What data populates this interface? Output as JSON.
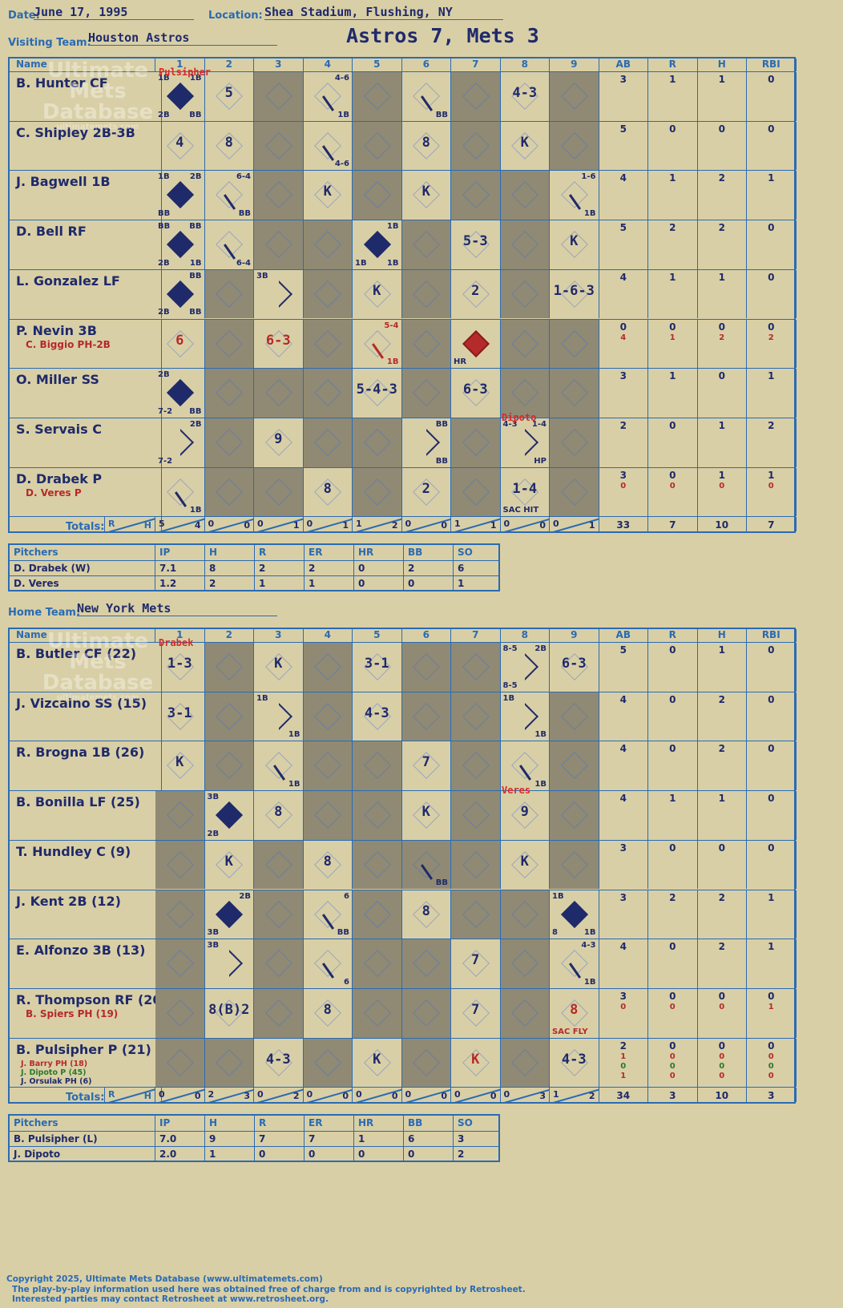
{
  "header": {
    "date_label": "Date:",
    "date": "June 17, 1995",
    "location_label": "Location:",
    "location": "Shea Stadium, Flushing, NY",
    "visiting_label": "Visiting Team:",
    "visiting_team": "Houston Astros",
    "home_label": "Home Team:",
    "home_team": "New York Mets",
    "title": "Astros 7, Mets 3"
  },
  "columns": {
    "name": "Name",
    "innings": [
      "1",
      "2",
      "3",
      "4",
      "5",
      "6",
      "7",
      "8",
      "9"
    ],
    "stats": [
      "AB",
      "R",
      "H",
      "RBI"
    ]
  },
  "watermark": {
    "line1": "Ultimate",
    "line2": "Mets",
    "line3": "Database",
    "url": "ultimatemets.com"
  },
  "visitors": {
    "players": [
      {
        "name": "B. Hunter CF",
        "subs": [],
        "stats": [
          [
            "3"
          ],
          [
            "1"
          ],
          [
            "1"
          ],
          [
            "0"
          ]
        ]
      },
      {
        "name": "C. Shipley 2B-3B",
        "subs": [],
        "stats": [
          [
            "5"
          ],
          [
            "0"
          ],
          [
            "0"
          ],
          [
            "0"
          ]
        ]
      },
      {
        "name": "J. Bagwell 1B",
        "subs": [],
        "stats": [
          [
            "4"
          ],
          [
            "1"
          ],
          [
            "2"
          ],
          [
            "1"
          ]
        ]
      },
      {
        "name": "D. Bell RF",
        "subs": [],
        "stats": [
          [
            "5"
          ],
          [
            "2"
          ],
          [
            "2"
          ],
          [
            "0"
          ]
        ]
      },
      {
        "name": "L. Gonzalez LF",
        "subs": [],
        "stats": [
          [
            "4"
          ],
          [
            "1"
          ],
          [
            "1"
          ],
          [
            "0"
          ]
        ]
      },
      {
        "name": "P. Nevin 3B",
        "subs": [
          "C. Biggio PH-2B"
        ],
        "stats": [
          [
            "0",
            "4"
          ],
          [
            "0",
            "1"
          ],
          [
            "0",
            "2"
          ],
          [
            "0",
            "2"
          ]
        ]
      },
      {
        "name": "O. Miller SS",
        "subs": [],
        "stats": [
          [
            "3"
          ],
          [
            "1"
          ],
          [
            "0"
          ],
          [
            "1"
          ]
        ]
      },
      {
        "name": "S. Servais C",
        "subs": [],
        "stats": [
          [
            "2"
          ],
          [
            "0"
          ],
          [
            "1"
          ],
          [
            "2"
          ]
        ]
      },
      {
        "name": "D. Drabek P",
        "subs": [
          "D. Veres P"
        ],
        "stats": [
          [
            "3",
            "0"
          ],
          [
            "0",
            "0"
          ],
          [
            "1",
            "0"
          ],
          [
            "1",
            "0"
          ]
        ]
      }
    ],
    "totals_label": "Totals:",
    "rh_r": "R",
    "rh_h": "H",
    "inning_totals": [
      [
        "5",
        "4"
      ],
      [
        "0",
        "0"
      ],
      [
        "0",
        "1"
      ],
      [
        "0",
        "1"
      ],
      [
        "1",
        "2"
      ],
      [
        "0",
        "0"
      ],
      [
        "1",
        "1"
      ],
      [
        "0",
        "0"
      ],
      [
        "0",
        "1"
      ]
    ],
    "stat_totals": [
      "33",
      "7",
      "10",
      "7"
    ]
  },
  "visitor_pitching": {
    "headers": [
      "Pitchers",
      "IP",
      "H",
      "R",
      "ER",
      "HR",
      "BB",
      "SO"
    ],
    "rows": [
      [
        "D. Drabek (W)",
        "7.1",
        "8",
        "2",
        "2",
        "0",
        "2",
        "6"
      ],
      [
        "D. Veres",
        "1.2",
        "2",
        "1",
        "1",
        "0",
        "0",
        "1"
      ]
    ]
  },
  "home": {
    "players": [
      {
        "name": "B. Butler CF (22)",
        "subs": [],
        "stats": [
          [
            "5"
          ],
          [
            "0"
          ],
          [
            "1"
          ],
          [
            "0"
          ]
        ]
      },
      {
        "name": "J. Vizcaino SS (15)",
        "subs": [],
        "stats": [
          [
            "4"
          ],
          [
            "0"
          ],
          [
            "2"
          ],
          [
            "0"
          ]
        ]
      },
      {
        "name": "R. Brogna 1B (26)",
        "subs": [],
        "stats": [
          [
            "4"
          ],
          [
            "0"
          ],
          [
            "2"
          ],
          [
            "0"
          ]
        ]
      },
      {
        "name": "B. Bonilla LF (25)",
        "subs": [],
        "stats": [
          [
            "4"
          ],
          [
            "1"
          ],
          [
            "1"
          ],
          [
            "0"
          ]
        ]
      },
      {
        "name": "T. Hundley C (9)",
        "subs": [],
        "stats": [
          [
            "3"
          ],
          [
            "0"
          ],
          [
            "0"
          ],
          [
            "0"
          ]
        ]
      },
      {
        "name": "J. Kent 2B (12)",
        "subs": [],
        "stats": [
          [
            "3"
          ],
          [
            "2"
          ],
          [
            "2"
          ],
          [
            "1"
          ]
        ]
      },
      {
        "name": "E. Alfonzo 3B (13)",
        "subs": [],
        "stats": [
          [
            "4"
          ],
          [
            "0"
          ],
          [
            "2"
          ],
          [
            "1"
          ]
        ]
      },
      {
        "name": "R. Thompson RF (20)",
        "subs": [
          "B. Spiers PH (19)"
        ],
        "stats": [
          [
            "3",
            "0"
          ],
          [
            "0",
            "0"
          ],
          [
            "0",
            "0"
          ],
          [
            "0",
            "1"
          ]
        ]
      },
      {
        "name": "B. Pulsipher P (21)",
        "subs": [
          "J. Barry PH (18)",
          "J. Dipoto P (45)",
          "J. Orsulak PH (6)"
        ],
        "stats": [
          [
            "2",
            "1",
            "0",
            "1"
          ],
          [
            "0",
            "0",
            "0",
            "0"
          ],
          [
            "0",
            "0",
            "0",
            "0"
          ],
          [
            "0",
            "0",
            "0",
            "0"
          ]
        ]
      }
    ],
    "totals_label": "Totals:",
    "rh_r": "R",
    "rh_h": "H",
    "inning_totals": [
      [
        "0",
        "0"
      ],
      [
        "2",
        "3"
      ],
      [
        "0",
        "2"
      ],
      [
        "0",
        "0"
      ],
      [
        "0",
        "0"
      ],
      [
        "0",
        "0"
      ],
      [
        "0",
        "0"
      ],
      [
        "0",
        "3"
      ],
      [
        "1",
        "2"
      ]
    ],
    "stat_totals": [
      "34",
      "3",
      "10",
      "3"
    ]
  },
  "home_pitching": {
    "headers": [
      "Pitchers",
      "IP",
      "H",
      "R",
      "ER",
      "HR",
      "BB",
      "SO"
    ],
    "rows": [
      [
        "B. Pulsipher (L)",
        "7.0",
        "9",
        "7",
        "7",
        "1",
        "6",
        "3"
      ],
      [
        "J. Dipoto",
        "2.0",
        "1",
        "0",
        "0",
        "0",
        "0",
        "2"
      ]
    ]
  },
  "pitching_change_notes": {
    "v_pulsipher": "Pulsipher",
    "v_dipoto": "Dipoto",
    "h_drabek": "Drabek",
    "h_veres": "Veres"
  },
  "footer": {
    "line1": "Copyright 2025, Ultimate Mets Database (www.ultimatemets.com)",
    "line2": "The play-by-play information used here was obtained free of charge from and is copyrighted by Retrosheet.",
    "line3": "Interested parties may contact Retrosheet at www.retrosheet.org."
  },
  "colors": {
    "paper": "#d9cfa6",
    "grid": "#2a6bb3",
    "ink": "#1f2a6b",
    "red": "#b52a2a",
    "shade": "#908a74"
  }
}
